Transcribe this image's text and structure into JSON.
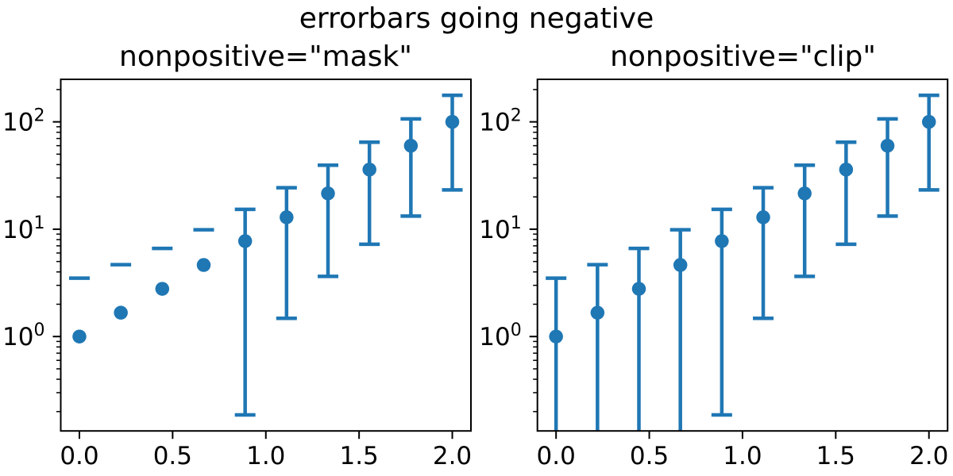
{
  "figure": {
    "suptitle": "errorbars going negative",
    "background_color": "#ffffff",
    "text_color": "#000000"
  },
  "chart_data": {
    "type": "scatter",
    "subtype": "errorbar",
    "title": "errorbars going negative",
    "yscale": "log",
    "xscale": "linear",
    "xlim": [
      -0.1,
      2.1
    ],
    "ylim": [
      0.132,
      249.0
    ],
    "grid": false,
    "legend": "none",
    "series_color": "#1f77b4",
    "axis_color": "#000000",
    "marker": "o",
    "subplots": [
      {
        "title": "nonpositive=\"mask\"",
        "mode": "mask"
      },
      {
        "title": "nonpositive=\"clip\"",
        "mode": "clip"
      }
    ],
    "x": [
      0.0,
      0.2222,
      0.4444,
      0.6667,
      0.8889,
      1.1111,
      1.3333,
      1.5556,
      1.7778,
      2.0
    ],
    "y": [
      1.0,
      1.668,
      2.783,
      4.642,
      7.743,
      12.915,
      21.544,
      35.938,
      59.948,
      100.0
    ],
    "yerr": [
      2.5,
      3.001,
      3.837,
      5.231,
      7.557,
      11.437,
      17.908,
      28.704,
      46.711,
      76.75
    ],
    "xticks": [
      0.0,
      0.5,
      1.0,
      1.5,
      2.0
    ],
    "xtick_labels": [
      "0.0",
      "0.5",
      "1.0",
      "1.5",
      "2.0"
    ],
    "yticks": [
      {
        "value": 1,
        "base": "10",
        "exp": "0"
      },
      {
        "value": 10,
        "base": "10",
        "exp": "1"
      },
      {
        "value": 100,
        "base": "10",
        "exp": "2"
      }
    ]
  }
}
